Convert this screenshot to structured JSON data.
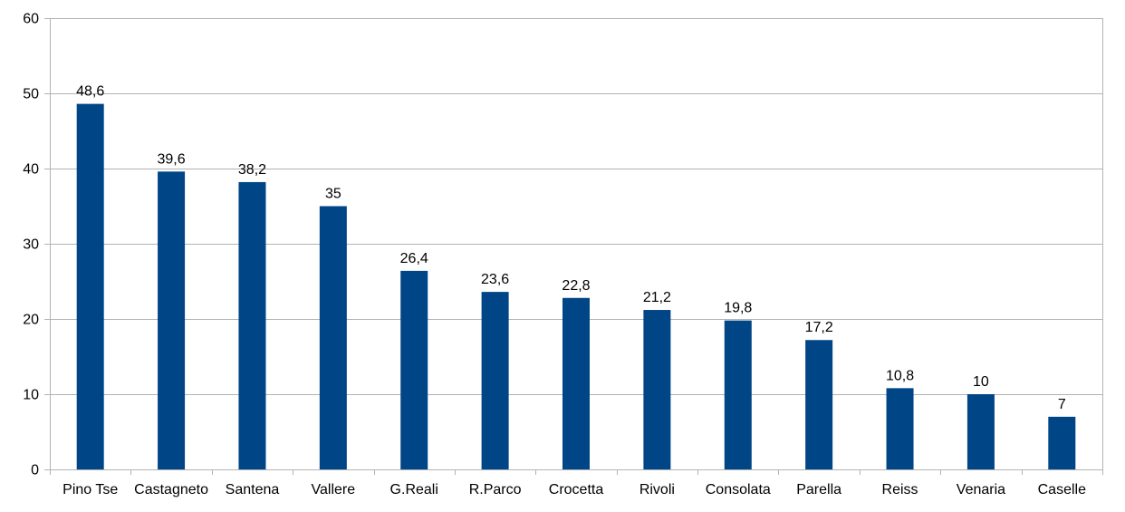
{
  "chart_data": {
    "type": "bar",
    "title": "",
    "xlabel": "",
    "ylabel": "",
    "categories": [
      "Pino Tse",
      "Castagneto",
      "Santena",
      "Vallere",
      "G.Reali",
      "R.Parco",
      "Crocetta",
      "Rivoli",
      "Consolata",
      "Parella",
      "Reiss",
      "Venaria",
      "Caselle"
    ],
    "values": [
      48.6,
      39.6,
      38.2,
      35,
      26.4,
      23.6,
      22.8,
      21.2,
      19.8,
      17.2,
      10.8,
      10,
      7
    ],
    "value_labels": [
      "48,6",
      "39,6",
      "38,2",
      "35",
      "26,4",
      "23,6",
      "22,8",
      "21,2",
      "19,8",
      "17,2",
      "10,8",
      "10",
      "7"
    ],
    "ylim": [
      0,
      60
    ],
    "yticks": [
      0,
      10,
      20,
      30,
      40,
      50,
      60
    ],
    "ytick_labels": [
      "0",
      "10",
      "20",
      "30",
      "40",
      "50",
      "60"
    ],
    "grid": true,
    "legend": "none",
    "bar_color": "#004586",
    "grid_color": "#b3b3b3"
  }
}
